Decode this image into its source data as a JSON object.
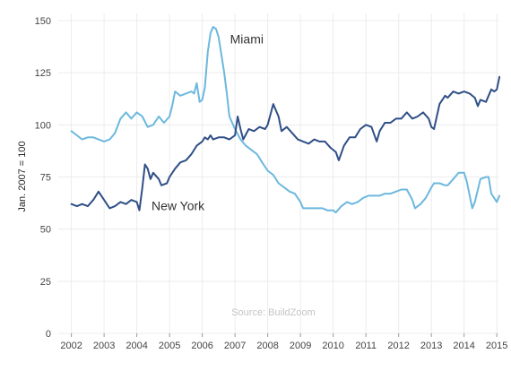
{
  "chart_data": {
    "type": "line",
    "ylabel": "Jan. 2007 = 100",
    "xlabel": "",
    "source": "Source: BuildZoom",
    "xlim": [
      2001.6,
      2015.05
    ],
    "ylim": [
      0,
      150
    ],
    "x_ticks": [
      2002,
      2003,
      2004,
      2005,
      2006,
      2007,
      2008,
      2009,
      2010,
      2011,
      2012,
      2013,
      2014,
      2015
    ],
    "y_ticks": [
      0,
      25,
      50,
      75,
      100,
      125,
      150
    ],
    "grid": true,
    "series": [
      {
        "name": "Miami",
        "color": "#6cb8de",
        "label_at": [
          2006.85,
          139
        ],
        "points": [
          [
            2002.0,
            97
          ],
          [
            2002.17,
            95
          ],
          [
            2002.33,
            93
          ],
          [
            2002.5,
            94
          ],
          [
            2002.67,
            94
          ],
          [
            2002.83,
            93
          ],
          [
            2003.0,
            92
          ],
          [
            2003.17,
            93
          ],
          [
            2003.33,
            96
          ],
          [
            2003.5,
            103
          ],
          [
            2003.67,
            106
          ],
          [
            2003.83,
            103
          ],
          [
            2004.0,
            106
          ],
          [
            2004.17,
            104
          ],
          [
            2004.33,
            99
          ],
          [
            2004.5,
            100
          ],
          [
            2004.67,
            104
          ],
          [
            2004.83,
            101
          ],
          [
            2005.0,
            104
          ],
          [
            2005.08,
            109
          ],
          [
            2005.17,
            116
          ],
          [
            2005.33,
            114
          ],
          [
            2005.5,
            115
          ],
          [
            2005.67,
            116
          ],
          [
            2005.75,
            115
          ],
          [
            2005.83,
            120
          ],
          [
            2005.92,
            111
          ],
          [
            2006.0,
            112
          ],
          [
            2006.08,
            118
          ],
          [
            2006.17,
            135
          ],
          [
            2006.25,
            144
          ],
          [
            2006.33,
            147
          ],
          [
            2006.42,
            146
          ],
          [
            2006.5,
            142
          ],
          [
            2006.58,
            134
          ],
          [
            2006.67,
            125
          ],
          [
            2006.75,
            115
          ],
          [
            2006.83,
            104
          ],
          [
            2007.0,
            98
          ],
          [
            2007.17,
            93
          ],
          [
            2007.33,
            90
          ],
          [
            2007.5,
            88
          ],
          [
            2007.67,
            86
          ],
          [
            2007.83,
            82
          ],
          [
            2008.0,
            78
          ],
          [
            2008.17,
            76
          ],
          [
            2008.33,
            72
          ],
          [
            2008.5,
            70
          ],
          [
            2008.67,
            68
          ],
          [
            2008.83,
            67
          ],
          [
            2009.0,
            63
          ],
          [
            2009.08,
            60
          ],
          [
            2009.25,
            60
          ],
          [
            2009.5,
            60
          ],
          [
            2009.67,
            60
          ],
          [
            2009.83,
            59
          ],
          [
            2010.0,
            59
          ],
          [
            2010.08,
            58
          ],
          [
            2010.25,
            61
          ],
          [
            2010.42,
            63
          ],
          [
            2010.58,
            62
          ],
          [
            2010.75,
            63
          ],
          [
            2010.92,
            65
          ],
          [
            2011.08,
            66
          ],
          [
            2011.25,
            66
          ],
          [
            2011.42,
            66
          ],
          [
            2011.58,
            67
          ],
          [
            2011.75,
            67
          ],
          [
            2011.92,
            68
          ],
          [
            2012.08,
            69
          ],
          [
            2012.25,
            69
          ],
          [
            2012.42,
            64
          ],
          [
            2012.5,
            60
          ],
          [
            2012.67,
            62
          ],
          [
            2012.83,
            65
          ],
          [
            2013.0,
            70
          ],
          [
            2013.08,
            72
          ],
          [
            2013.25,
            72
          ],
          [
            2013.42,
            71
          ],
          [
            2013.5,
            71
          ],
          [
            2013.67,
            74
          ],
          [
            2013.83,
            77
          ],
          [
            2014.0,
            77
          ],
          [
            2014.08,
            73
          ],
          [
            2014.25,
            60
          ],
          [
            2014.33,
            63
          ],
          [
            2014.5,
            74
          ],
          [
            2014.67,
            75
          ],
          [
            2014.75,
            75
          ],
          [
            2014.83,
            67
          ],
          [
            2015.0,
            63
          ],
          [
            2015.08,
            66
          ]
        ]
      },
      {
        "name": "New York",
        "color": "#2f4f86",
        "label_at": [
          2004.45,
          59
        ],
        "points": [
          [
            2002.0,
            62
          ],
          [
            2002.17,
            61
          ],
          [
            2002.33,
            62
          ],
          [
            2002.5,
            61
          ],
          [
            2002.67,
            64
          ],
          [
            2002.83,
            68
          ],
          [
            2003.0,
            64
          ],
          [
            2003.17,
            60
          ],
          [
            2003.33,
            61
          ],
          [
            2003.5,
            63
          ],
          [
            2003.67,
            62
          ],
          [
            2003.83,
            64
          ],
          [
            2004.0,
            63
          ],
          [
            2004.08,
            59
          ],
          [
            2004.17,
            70
          ],
          [
            2004.25,
            81
          ],
          [
            2004.33,
            79
          ],
          [
            2004.42,
            74
          ],
          [
            2004.5,
            77
          ],
          [
            2004.67,
            74
          ],
          [
            2004.75,
            71
          ],
          [
            2004.92,
            72
          ],
          [
            2005.0,
            75
          ],
          [
            2005.17,
            79
          ],
          [
            2005.33,
            82
          ],
          [
            2005.5,
            83
          ],
          [
            2005.67,
            86
          ],
          [
            2005.83,
            90
          ],
          [
            2006.0,
            92
          ],
          [
            2006.08,
            94
          ],
          [
            2006.17,
            93
          ],
          [
            2006.25,
            95
          ],
          [
            2006.33,
            93
          ],
          [
            2006.5,
            94
          ],
          [
            2006.67,
            94
          ],
          [
            2006.83,
            93
          ],
          [
            2007.0,
            95
          ],
          [
            2007.08,
            104
          ],
          [
            2007.17,
            98
          ],
          [
            2007.25,
            93
          ],
          [
            2007.42,
            98
          ],
          [
            2007.58,
            97
          ],
          [
            2007.75,
            99
          ],
          [
            2007.92,
            98
          ],
          [
            2008.0,
            100
          ],
          [
            2008.17,
            110
          ],
          [
            2008.33,
            104
          ],
          [
            2008.42,
            97
          ],
          [
            2008.58,
            99
          ],
          [
            2008.75,
            96
          ],
          [
            2008.92,
            93
          ],
          [
            2009.08,
            92
          ],
          [
            2009.25,
            91
          ],
          [
            2009.42,
            93
          ],
          [
            2009.58,
            92
          ],
          [
            2009.75,
            92
          ],
          [
            2009.92,
            89
          ],
          [
            2010.08,
            87
          ],
          [
            2010.17,
            83
          ],
          [
            2010.33,
            90
          ],
          [
            2010.5,
            94
          ],
          [
            2010.67,
            94
          ],
          [
            2010.83,
            98
          ],
          [
            2011.0,
            100
          ],
          [
            2011.17,
            99
          ],
          [
            2011.33,
            92
          ],
          [
            2011.42,
            97
          ],
          [
            2011.58,
            101
          ],
          [
            2011.75,
            101
          ],
          [
            2011.92,
            103
          ],
          [
            2012.08,
            103
          ],
          [
            2012.25,
            106
          ],
          [
            2012.42,
            103
          ],
          [
            2012.58,
            104
          ],
          [
            2012.75,
            106
          ],
          [
            2012.92,
            103
          ],
          [
            2013.0,
            99
          ],
          [
            2013.08,
            98
          ],
          [
            2013.25,
            110
          ],
          [
            2013.42,
            114
          ],
          [
            2013.5,
            113
          ],
          [
            2013.67,
            116
          ],
          [
            2013.83,
            115
          ],
          [
            2014.0,
            116
          ],
          [
            2014.17,
            115
          ],
          [
            2014.33,
            113
          ],
          [
            2014.42,
            109
          ],
          [
            2014.5,
            112
          ],
          [
            2014.67,
            111
          ],
          [
            2014.83,
            117
          ],
          [
            2014.92,
            116
          ],
          [
            2015.0,
            117
          ],
          [
            2015.08,
            123
          ]
        ]
      }
    ]
  }
}
